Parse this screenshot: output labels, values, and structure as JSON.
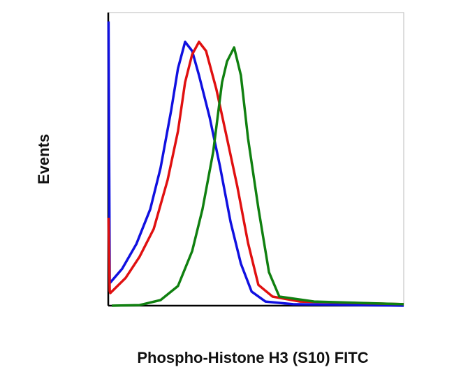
{
  "chart_data": {
    "type": "line",
    "x_label": "Phospho-Histone H3 (S10) FITC",
    "y_label": "Events",
    "xlim": [
      0,
      1000
    ],
    "ylim": [
      0,
      100
    ],
    "series": [
      {
        "color": "#1010e0",
        "x": [
          1,
          5,
          7,
          47,
          95,
          142,
          177,
          213,
          236,
          260,
          284,
          307,
          343,
          378,
          414,
          449,
          485,
          532,
          626,
          1000
        ],
        "values": [
          97,
          8,
          7.9,
          12.6,
          21,
          32.9,
          47,
          66.7,
          80.9,
          90,
          86.9,
          78.6,
          64.3,
          47.6,
          28.6,
          14.3,
          4.8,
          1.4,
          0.5,
          0
        ]
      },
      {
        "color": "#e01010",
        "x": [
          1,
          5,
          7,
          59,
          106,
          154,
          201,
          236,
          260,
          284,
          307,
          331,
          366,
          402,
          437,
          473,
          508,
          556,
          650,
          1000
        ],
        "values": [
          30,
          5,
          4.3,
          9.5,
          16.7,
          26.2,
          42.9,
          59.5,
          76.2,
          85.7,
          90,
          86.9,
          73.8,
          57.1,
          40.5,
          21.4,
          7.1,
          3.1,
          1.4,
          0.5
        ]
      },
      {
        "color": "#108010",
        "x": [
          12,
          106,
          177,
          236,
          284,
          319,
          355,
          385,
          402,
          426,
          449,
          473,
          508,
          544,
          579,
          697,
          1000
        ],
        "values": [
          0,
          0.2,
          1.9,
          6.7,
          18.6,
          32.9,
          52.4,
          76.2,
          83.3,
          88.1,
          78.6,
          57.1,
          33.3,
          11.4,
          3.1,
          1.4,
          0.5
        ]
      }
    ]
  }
}
